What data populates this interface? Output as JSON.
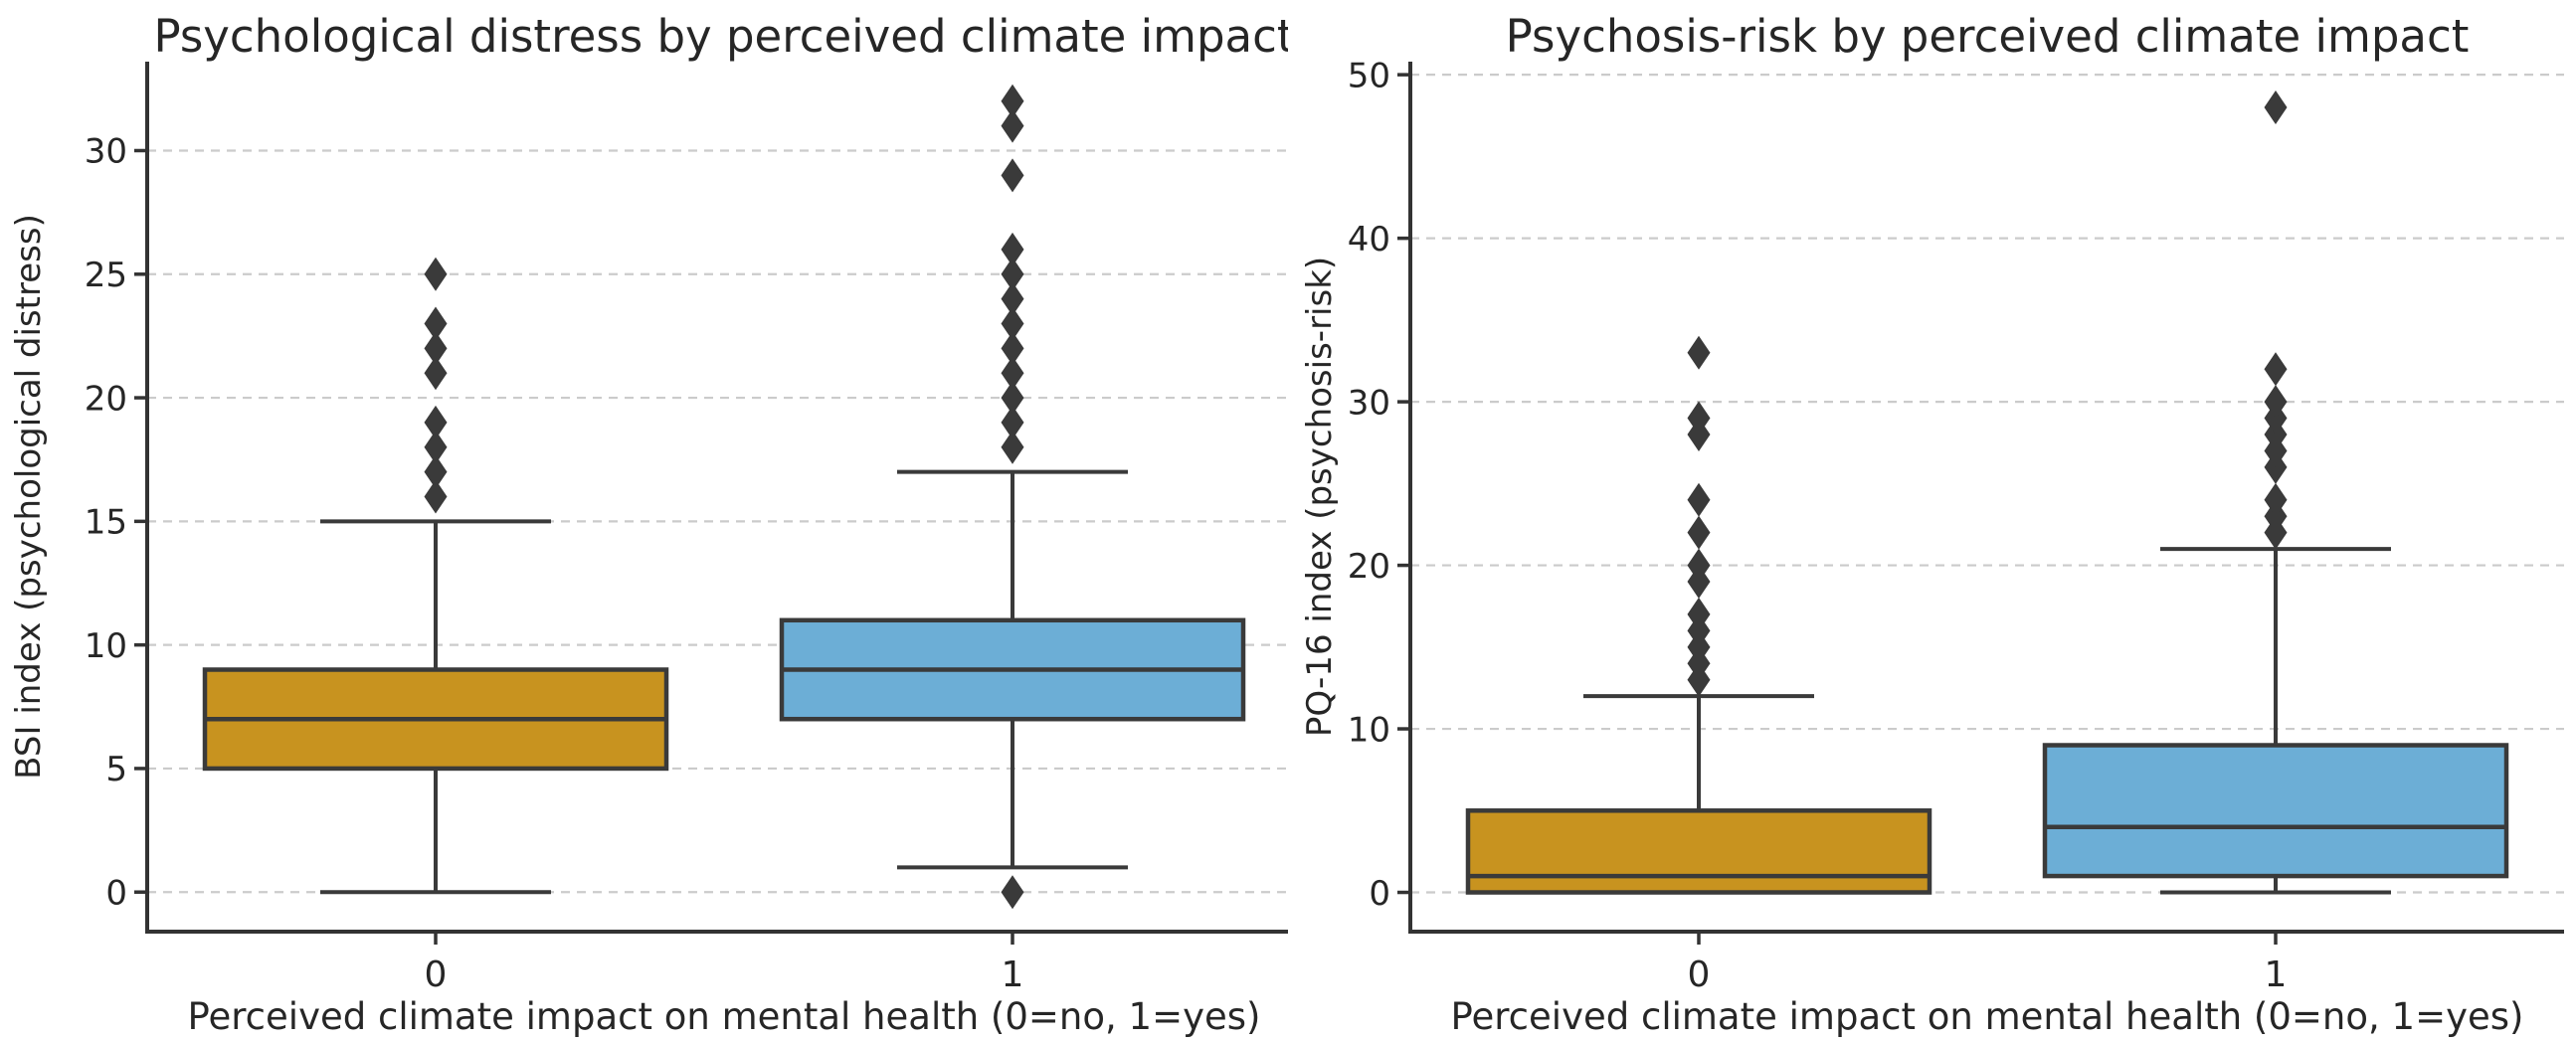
{
  "figure": {
    "background": "#ffffff",
    "text_color": "#262626"
  },
  "colors": {
    "group0_fill": "#C8931F",
    "group1_fill": "#6CAED6",
    "box_edge": "#3A3A3A",
    "flier": "#3A3A3A",
    "spine": "#333333",
    "grid": "#CBCBCB"
  },
  "chart_data": [
    {
      "id": "bsi",
      "type": "box",
      "title": "Psychological distress by perceived climate impact",
      "xlabel": "Perceived climate impact on mental health (0=no, 1=yes)",
      "ylabel": "BSI index (psychological distress)",
      "categories": [
        "0",
        "1"
      ],
      "yticks": [
        0,
        5,
        10,
        15,
        20,
        25,
        30
      ],
      "ylim": [
        -1.6,
        33.6
      ],
      "grid": "horizontal-dashed",
      "legend": "none",
      "groups": [
        {
          "category": "0",
          "fill": "#C8931F",
          "whislo": 0,
          "q1": 5,
          "med": 7,
          "q3": 9,
          "whishi": 15,
          "fliers": [
            16,
            17,
            18,
            19,
            21,
            22,
            23,
            25
          ]
        },
        {
          "category": "1",
          "fill": "#6CAED6",
          "whislo": 1,
          "q1": 7,
          "med": 9,
          "q3": 11,
          "whishi": 17,
          "fliers": [
            0,
            18,
            19,
            20,
            21,
            22,
            23,
            24,
            25,
            26,
            29,
            31,
            32
          ]
        }
      ]
    },
    {
      "id": "pq16",
      "type": "box",
      "title": "Psychosis-risk by perceived climate impact",
      "xlabel": "Perceived climate impact on mental health (0=no, 1=yes)",
      "ylabel": "PQ-16 index (psychosis-risk)",
      "categories": [
        "0",
        "1"
      ],
      "yticks": [
        0,
        10,
        20,
        30,
        40,
        50
      ],
      "ylim": [
        -2.4,
        50.8
      ],
      "grid": "horizontal-dashed",
      "legend": "none",
      "groups": [
        {
          "category": "0",
          "fill": "#C8931F",
          "whislo": 0,
          "q1": 0,
          "med": 1,
          "q3": 5,
          "whishi": 12,
          "fliers": [
            13,
            14,
            15,
            16,
            17,
            19,
            20,
            22,
            24,
            28,
            29,
            33
          ]
        },
        {
          "category": "1",
          "fill": "#6CAED6",
          "whislo": 0,
          "q1": 1,
          "med": 4,
          "q3": 9,
          "whishi": 21,
          "fliers": [
            22,
            23,
            24,
            26,
            27,
            28,
            29,
            30,
            32,
            48
          ]
        }
      ]
    }
  ]
}
